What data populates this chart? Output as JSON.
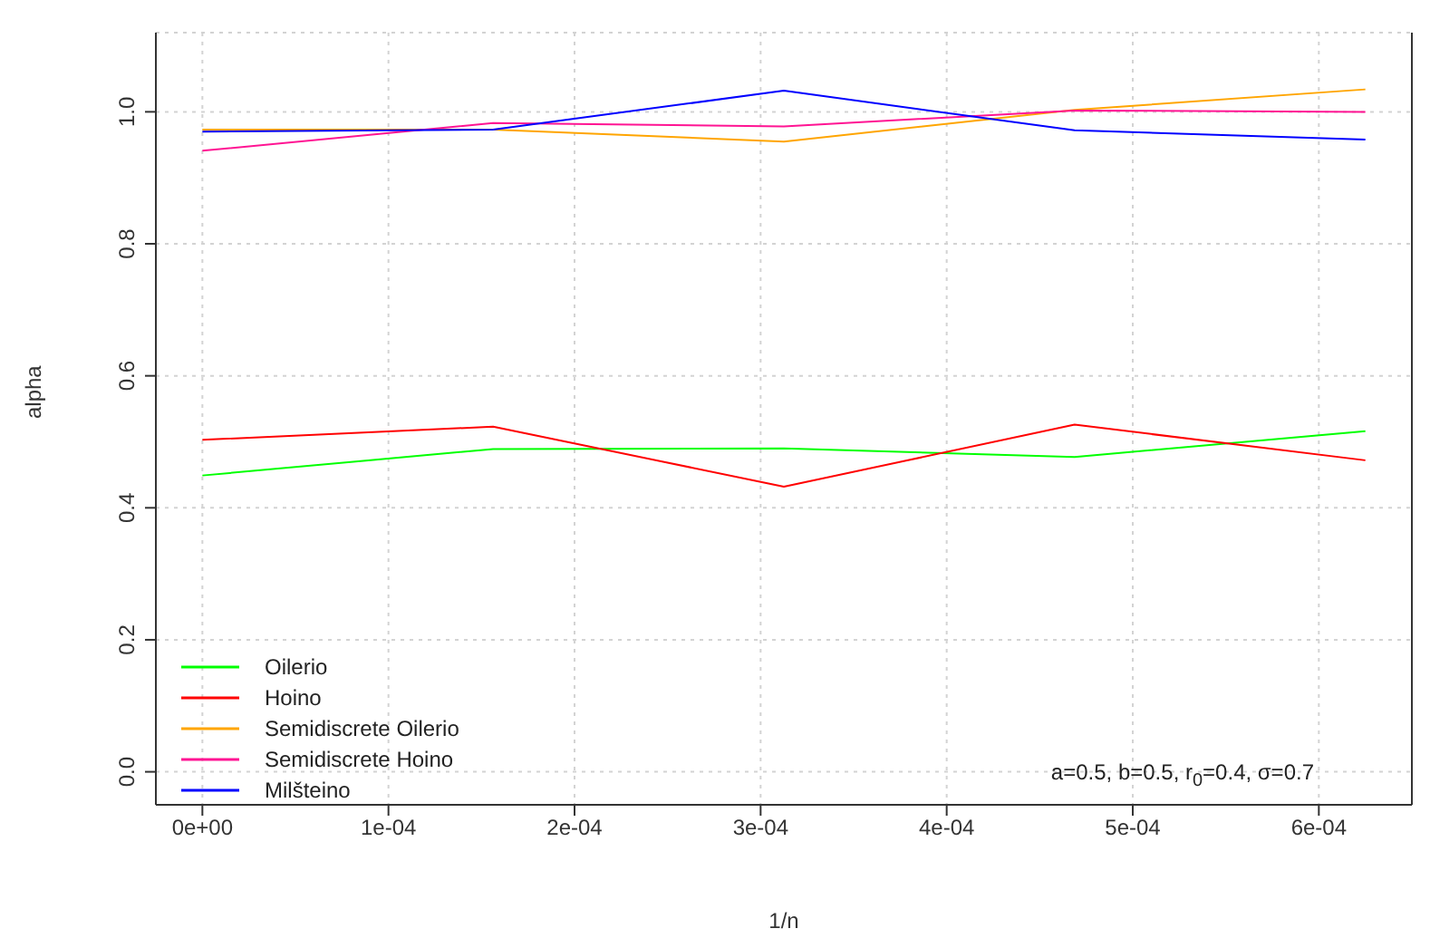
{
  "chart_data": {
    "type": "line",
    "xlabel": "1/n",
    "ylabel": "alpha",
    "x": [
      0,
      0.00015625,
      0.0003125,
      0.00046875,
      0.000625
    ],
    "series": [
      {
        "name": "Oilerio",
        "color": "#00ff00",
        "values": [
          0.449,
          0.489,
          0.49,
          0.477,
          0.516
        ]
      },
      {
        "name": "Hoino",
        "color": "#ff0000",
        "values": [
          0.503,
          0.523,
          0.432,
          0.526,
          0.472
        ]
      },
      {
        "name": "Semidiscrete Oilerio",
        "color": "#ffa500",
        "values": [
          0.973,
          0.973,
          0.955,
          1.003,
          1.034
        ]
      },
      {
        "name": "Semidiscrete Hoino",
        "color": "#ff1493",
        "values": [
          0.941,
          0.983,
          0.978,
          1.002,
          1.0
        ]
      },
      {
        "name": "Milšteino",
        "color": "#0000ff",
        "values": [
          0.97,
          0.973,
          1.032,
          0.972,
          0.958
        ]
      }
    ],
    "xlim": [
      -2.5e-05,
      0.00065
    ],
    "xticks": [
      {
        "value": 0,
        "label": "0e+00"
      },
      {
        "value": 0.0001,
        "label": "1e-04"
      },
      {
        "value": 0.0002,
        "label": "2e-04"
      },
      {
        "value": 0.0003,
        "label": "3e-04"
      },
      {
        "value": 0.0004,
        "label": "4e-04"
      },
      {
        "value": 0.0005,
        "label": "5e-04"
      },
      {
        "value": 0.0006,
        "label": "6e-04"
      }
    ],
    "ylim": [
      -0.05,
      1.12
    ],
    "yticks": [
      {
        "value": 0,
        "label": "0.0"
      },
      {
        "value": 0.2,
        "label": "0.2"
      },
      {
        "value": 0.4,
        "label": "0.4"
      },
      {
        "value": 0.6,
        "label": "0.6"
      },
      {
        "value": 0.8,
        "label": "0.8"
      },
      {
        "value": 1,
        "label": "1.0"
      }
    ],
    "annotations": [
      {
        "text": "a=0.5, b=0.5, r$_{0}$=0.4, σ=0.7"
      }
    ],
    "grid": true,
    "legend": "bottom left",
    "marker": "none",
    "line_style": "solid"
  }
}
